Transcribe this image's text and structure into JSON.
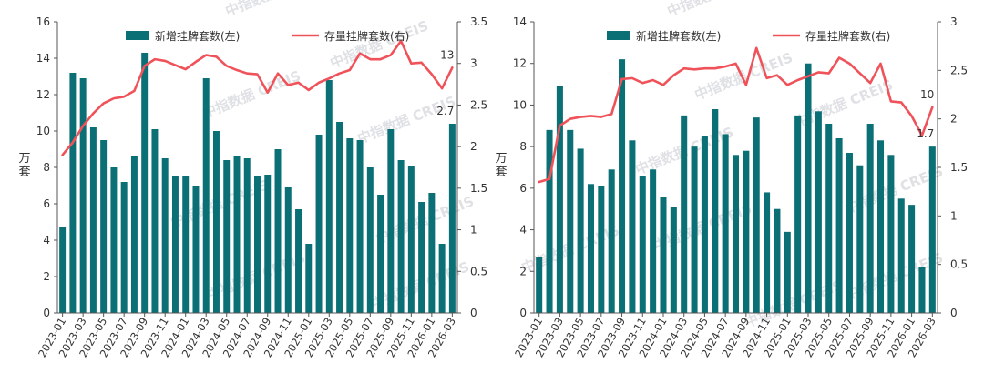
{
  "colors": {
    "bar": "#0b7075",
    "line": "#f0525a",
    "axis": "#555555",
    "text": "#333333",
    "watermark": "#c9cdd3"
  },
  "watermark": "中指数据 CREIS",
  "chart_data": [
    {
      "type": "bar",
      "series": [
        {
          "name": "新增挂牌套数(左)",
          "type": "bar",
          "axis": "left",
          "values": [
            4.7,
            13.2,
            12.9,
            10.2,
            9.5,
            8.0,
            7.2,
            8.6,
            14.3,
            10.1,
            8.5,
            7.5,
            7.5,
            7.0,
            12.9,
            10.0,
            8.4,
            8.6,
            8.5,
            7.5,
            7.6,
            9.0,
            6.9,
            5.7,
            3.8,
            9.8,
            12.8,
            10.5,
            9.6,
            9.5,
            8.0,
            6.5,
            10.1,
            8.4,
            8.1,
            6.1,
            6.6,
            3.8,
            10.4
          ]
        },
        {
          "name": "存量挂牌套数(右)",
          "type": "line",
          "axis": "right",
          "values": [
            1.9,
            2.05,
            2.25,
            2.4,
            2.52,
            2.58,
            2.6,
            2.67,
            2.97,
            3.05,
            3.03,
            2.98,
            2.93,
            3.02,
            3.1,
            3.08,
            2.97,
            2.92,
            2.88,
            2.87,
            2.65,
            2.88,
            2.74,
            2.77,
            2.68,
            2.77,
            2.82,
            2.88,
            2.92,
            3.12,
            3.05,
            3.05,
            3.1,
            3.27,
            3.0,
            3.01,
            2.87,
            2.7,
            2.95
          ]
        }
      ],
      "x_labels": [
        "2023-01",
        "2023-03",
        "2023-05",
        "2023-07",
        "2023-09",
        "2023-11",
        "2024-01",
        "2024-03",
        "2024-05",
        "2024-07",
        "2024-09",
        "2024-11",
        "2025-01",
        "2025-03",
        "2025-05",
        "2025-07",
        "2025-09",
        "2025-11",
        "2026-01",
        "2026-03"
      ],
      "y_left": {
        "label": "万套",
        "ylim": [
          0,
          16
        ],
        "ticks": [
          "0",
          "2",
          "4",
          "6",
          "8",
          "10",
          "12",
          "14",
          "16"
        ]
      },
      "y_right": {
        "ylim": [
          0,
          3.5
        ],
        "ticks": [
          "0",
          "0.5",
          "1",
          "1.5",
          "2",
          "2.5",
          "3",
          "3.5"
        ]
      },
      "end_labels": {
        "line": "13",
        "bar": "2.7"
      },
      "legend": {
        "position": "top",
        "bar_label": "新增挂牌套数(左)",
        "line_label": "存量挂牌套数(右)"
      },
      "grid": false
    },
    {
      "type": "bar",
      "series": [
        {
          "name": "新增挂牌套数(左)",
          "type": "bar",
          "axis": "left",
          "values": [
            2.7,
            8.8,
            10.9,
            8.8,
            7.9,
            6.2,
            6.1,
            6.9,
            12.2,
            8.3,
            6.6,
            6.9,
            5.6,
            5.1,
            9.5,
            8.0,
            8.5,
            9.8,
            8.6,
            7.6,
            7.8,
            9.4,
            5.8,
            5.0,
            3.9,
            9.5,
            12.0,
            9.7,
            9.1,
            8.4,
            7.7,
            7.1,
            9.1,
            8.3,
            7.6,
            5.5,
            5.2,
            2.2,
            8.0
          ]
        },
        {
          "name": "存量挂牌套数(右)",
          "type": "line",
          "axis": "right",
          "values": [
            1.35,
            1.38,
            1.93,
            2.0,
            2.02,
            2.03,
            2.02,
            2.05,
            2.41,
            2.42,
            2.37,
            2.4,
            2.35,
            2.45,
            2.52,
            2.51,
            2.52,
            2.52,
            2.54,
            2.57,
            2.35,
            2.73,
            2.42,
            2.45,
            2.35,
            2.4,
            2.44,
            2.48,
            2.47,
            2.63,
            2.57,
            2.47,
            2.37,
            2.57,
            2.18,
            2.17,
            2.03,
            1.83,
            2.12
          ]
        }
      ],
      "x_labels": [
        "2023-01",
        "2023-03",
        "2023-05",
        "2023-07",
        "2023-09",
        "2023-11",
        "2024-01",
        "2024-03",
        "2024-05",
        "2024-07",
        "2024-09",
        "2024-11",
        "2025-01",
        "2025-03",
        "2025-05",
        "2025-07",
        "2025-09",
        "2025-11",
        "2026-01",
        "2026-03"
      ],
      "y_left": {
        "label": "万套",
        "ylim": [
          0,
          14
        ],
        "ticks": [
          "0",
          "2",
          "4",
          "6",
          "8",
          "10",
          "12",
          "14"
        ]
      },
      "y_right": {
        "ylim": [
          0,
          3
        ],
        "ticks": [
          "0",
          "0.5",
          "1",
          "1.5",
          "2",
          "2.5",
          "3"
        ]
      },
      "end_labels": {
        "line": "10",
        "bar": "1.7"
      },
      "legend": {
        "position": "top",
        "bar_label": "新增挂牌套数(左)",
        "line_label": "存量挂牌套数(右)"
      },
      "grid": false
    }
  ]
}
